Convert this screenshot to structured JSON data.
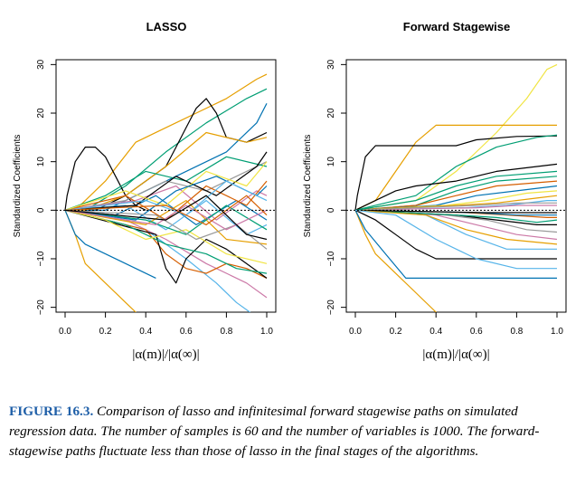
{
  "chart_data": [
    {
      "type": "line",
      "title": "LASSO",
      "xlabel": "|α(m)|/|α(∞)|",
      "ylabel": "Standardized Coefficients",
      "xlim": [
        0.0,
        1.0
      ],
      "ylim": [
        -21,
        31
      ],
      "xticks": [
        "0.0",
        "0.2",
        "0.4",
        "0.6",
        "0.8",
        "1.0"
      ],
      "yticks": [
        "30",
        "20",
        "10",
        "0",
        "−10",
        "−20"
      ],
      "grid": false,
      "legend": "none",
      "zero_line": true,
      "series": [
        {
          "color": "#e69f00",
          "x": [
            0,
            0.05,
            0.2,
            0.35,
            0.5,
            0.65,
            0.8,
            0.95,
            1.0
          ],
          "y": [
            0,
            0,
            6,
            14,
            17,
            20,
            23,
            27,
            28
          ]
        },
        {
          "color": "#009e73",
          "x": [
            0,
            0.1,
            0.3,
            0.5,
            0.7,
            0.9,
            1.0
          ],
          "y": [
            0,
            0,
            5,
            12,
            18,
            23,
            25
          ]
        },
        {
          "color": "#000000",
          "x": [
            0,
            0.01,
            0.05,
            0.1,
            0.15,
            0.2,
            0.25,
            0.3,
            0.35,
            0.4
          ],
          "y": [
            0,
            3,
            10,
            13,
            13,
            11,
            7,
            3,
            1,
            0
          ]
        },
        {
          "color": "#000000",
          "x": [
            0,
            0.15,
            0.3,
            0.4,
            0.5,
            0.55,
            0.6,
            0.65,
            0.7,
            0.75,
            0.8,
            0.9,
            1.0
          ],
          "y": [
            0,
            0,
            3,
            6,
            9,
            13,
            17,
            21,
            23,
            20,
            15,
            14,
            16
          ]
        },
        {
          "color": "#0072b2",
          "x": [
            0,
            0.2,
            0.4,
            0.6,
            0.8,
            0.95,
            1.0
          ],
          "y": [
            0,
            0,
            4,
            8,
            12,
            18,
            22
          ]
        },
        {
          "color": "#e69f00",
          "x": [
            0,
            0.05,
            0.1,
            0.2,
            0.3,
            0.35,
            0.4,
            0.5
          ],
          "y": [
            0,
            -5,
            -11,
            -15,
            -19,
            -21,
            -24,
            -27
          ]
        },
        {
          "color": "#56b4e9",
          "x": [
            0,
            0.4,
            0.6,
            0.75,
            0.85,
            0.95,
            1.0
          ],
          "y": [
            0,
            -4,
            -10,
            -15,
            -19,
            -22,
            -24
          ]
        },
        {
          "color": "#cc79a7",
          "x": [
            0,
            0.3,
            0.5,
            0.7,
            0.9,
            1.0
          ],
          "y": [
            0,
            -2,
            -6,
            -11,
            -15,
            -18
          ]
        },
        {
          "color": "#d55e00",
          "x": [
            0,
            0.4,
            0.5,
            0.6,
            0.7,
            0.8,
            0.9,
            1.0
          ],
          "y": [
            0,
            -4,
            -9,
            -12,
            -13,
            -11,
            -12,
            -14
          ]
        },
        {
          "color": "#000000",
          "x": [
            0,
            0.45,
            0.5,
            0.55,
            0.6,
            0.7,
            0.8,
            1.0
          ],
          "y": [
            0,
            -5,
            -12,
            -15,
            -10,
            -6,
            -8,
            -14
          ]
        },
        {
          "color": "#009e73",
          "x": [
            0,
            0.3,
            0.5,
            0.7,
            0.85,
            1.0
          ],
          "y": [
            0,
            -3,
            -7,
            -9,
            -12,
            -13
          ]
        },
        {
          "color": "#0072b2",
          "x": [
            0,
            0.05,
            0.1,
            0.2,
            0.35,
            0.45
          ],
          "y": [
            0,
            -5,
            -7,
            -9,
            -12,
            -14
          ]
        },
        {
          "color": "#e69f00",
          "x": [
            0,
            0.1,
            0.3,
            0.5,
            0.7,
            0.9,
            1.0
          ],
          "y": [
            0,
            0,
            3,
            9,
            16,
            14,
            15
          ]
        },
        {
          "color": "#f0e442",
          "x": [
            0,
            0.2,
            0.4,
            0.6,
            0.8,
            1.0
          ],
          "y": [
            0,
            -2,
            -6,
            -4,
            -9,
            -11
          ]
        },
        {
          "color": "#999999",
          "x": [
            0,
            0.3,
            0.5,
            0.7,
            0.9,
            1.0
          ],
          "y": [
            0,
            2,
            6,
            4,
            8,
            10
          ]
        },
        {
          "color": "#009e73",
          "x": [
            0,
            0.2,
            0.4,
            0.6,
            0.8,
            1.0
          ],
          "y": [
            0,
            3,
            8,
            6,
            11,
            9
          ]
        },
        {
          "color": "#0072b2",
          "x": [
            0,
            0.25,
            0.45,
            0.65,
            0.85,
            1.0
          ],
          "y": [
            0,
            -1,
            3,
            -3,
            2,
            -2
          ]
        },
        {
          "color": "#56b4e9",
          "x": [
            0,
            0.3,
            0.5,
            0.7,
            0.9,
            1.0
          ],
          "y": [
            0,
            1,
            -4,
            2,
            -5,
            -3
          ]
        },
        {
          "color": "#cc79a7",
          "x": [
            0,
            0.35,
            0.55,
            0.75,
            0.95,
            1.0
          ],
          "y": [
            0,
            2,
            5,
            -2,
            4,
            3
          ]
        },
        {
          "color": "#d55e00",
          "x": [
            0,
            0.3,
            0.5,
            0.7,
            0.9,
            1.0
          ],
          "y": [
            0,
            3,
            -2,
            5,
            1,
            6
          ]
        },
        {
          "color": "#e69f00",
          "x": [
            0,
            0.4,
            0.6,
            0.8,
            1.0
          ],
          "y": [
            0,
            -3,
            2,
            -6,
            -7
          ]
        },
        {
          "color": "#000000",
          "x": [
            0,
            0.35,
            0.55,
            0.75,
            0.95,
            1.0
          ],
          "y": [
            0,
            1,
            7,
            3,
            9,
            12
          ]
        },
        {
          "color": "#009e73",
          "x": [
            0,
            0.4,
            0.6,
            0.8,
            1.0
          ],
          "y": [
            0,
            -2,
            -5,
            1,
            -4
          ]
        },
        {
          "color": "#f0e442",
          "x": [
            0,
            0.3,
            0.5,
            0.7,
            0.9,
            1.0
          ],
          "y": [
            0,
            4,
            1,
            8,
            5,
            10
          ]
        },
        {
          "color": "#0072b2",
          "x": [
            0,
            0.35,
            0.55,
            0.75,
            0.95,
            1.0
          ],
          "y": [
            0,
            -2,
            4,
            7,
            3,
            5
          ]
        },
        {
          "color": "#999999",
          "x": [
            0,
            0.45,
            0.65,
            0.85,
            1.0
          ],
          "y": [
            0,
            -1,
            -6,
            -3,
            -8
          ]
        },
        {
          "color": "#56b4e9",
          "x": [
            0,
            0.4,
            0.6,
            0.8,
            1.0
          ],
          "y": [
            0,
            2,
            -1,
            6,
            2
          ]
        },
        {
          "color": "#cc79a7",
          "x": [
            0,
            0.45,
            0.6,
            0.8,
            1.0
          ],
          "y": [
            0,
            -3,
            1,
            -4,
            0
          ]
        },
        {
          "color": "#d55e00",
          "x": [
            0,
            0.5,
            0.7,
            0.9,
            1.0
          ],
          "y": [
            0,
            1,
            -3,
            3,
            -1
          ]
        },
        {
          "color": "#000000",
          "x": [
            0,
            0.5,
            0.7,
            0.9,
            1.0
          ],
          "y": [
            0,
            -2,
            3,
            -5,
            -6
          ]
        }
      ]
    },
    {
      "type": "line",
      "title": "Forward Stagewise",
      "xlabel": "|α(m)|/|α(∞)|",
      "ylabel": "Standardized Coefficients",
      "xlim": [
        0.0,
        1.0
      ],
      "ylim": [
        -21,
        31
      ],
      "xticks": [
        "0.0",
        "0.2",
        "0.4",
        "0.6",
        "0.8",
        "1.0"
      ],
      "yticks": [
        "30",
        "20",
        "10",
        "0",
        "−10",
        "−20"
      ],
      "grid": false,
      "legend": "none",
      "zero_line": true,
      "series": [
        {
          "color": "#f0e442",
          "x": [
            0,
            0.3,
            0.5,
            0.7,
            0.85,
            0.95,
            1.0
          ],
          "y": [
            0,
            2,
            8,
            16,
            23,
            29,
            30
          ]
        },
        {
          "color": "#e69f00",
          "x": [
            0,
            0.1,
            0.2,
            0.3,
            0.4,
            1.0
          ],
          "y": [
            0,
            2,
            8,
            14,
            17.5,
            17.5
          ]
        },
        {
          "color": "#000000",
          "x": [
            0,
            0.01,
            0.05,
            0.1,
            0.5,
            0.6,
            0.8,
            1.0
          ],
          "y": [
            0,
            3,
            11,
            13.3,
            13.3,
            14.5,
            15.2,
            15.3
          ]
        },
        {
          "color": "#009e73",
          "x": [
            0,
            0.3,
            0.5,
            0.7,
            0.9,
            1.0
          ],
          "y": [
            0,
            3,
            9,
            13,
            15,
            15.5
          ]
        },
        {
          "color": "#e69f00",
          "x": [
            0,
            0.05,
            0.1,
            0.2,
            0.3,
            0.4,
            0.45
          ],
          "y": [
            0,
            -5,
            -9,
            -13,
            -17,
            -21,
            -24
          ]
        },
        {
          "color": "#0072b2",
          "x": [
            0,
            0.05,
            0.15,
            0.25,
            1.0
          ],
          "y": [
            0,
            -4,
            -9,
            -14,
            -14
          ]
        },
        {
          "color": "#000000",
          "x": [
            0,
            0.1,
            0.2,
            0.3,
            0.4,
            1.0
          ],
          "y": [
            0,
            -2,
            -5,
            -8,
            -10,
            -10
          ]
        },
        {
          "color": "#000000",
          "x": [
            0,
            0.1,
            0.2,
            0.3,
            0.5,
            0.7,
            1.0
          ],
          "y": [
            0,
            2,
            4,
            5,
            6,
            8,
            9.5
          ]
        },
        {
          "color": "#009e73",
          "x": [
            0,
            0.3,
            0.5,
            0.7,
            1.0
          ],
          "y": [
            0,
            1,
            4,
            6,
            7
          ]
        },
        {
          "color": "#56b4e9",
          "x": [
            0,
            0.35,
            0.55,
            0.75,
            1.0
          ],
          "y": [
            0,
            -1,
            -5,
            -8,
            -8
          ]
        },
        {
          "color": "#d55e00",
          "x": [
            0,
            0.3,
            0.5,
            0.7,
            1.0
          ],
          "y": [
            0,
            1,
            3,
            5,
            6
          ]
        },
        {
          "color": "#cc79a7",
          "x": [
            0,
            0.4,
            0.6,
            0.8,
            1.0
          ],
          "y": [
            0,
            -1,
            -3,
            -5,
            -6
          ]
        },
        {
          "color": "#0072b2",
          "x": [
            0,
            0.4,
            0.6,
            0.8,
            1.0
          ],
          "y": [
            0,
            1,
            3,
            4,
            5
          ]
        },
        {
          "color": "#999999",
          "x": [
            0,
            0.45,
            0.65,
            0.85,
            1.0
          ],
          "y": [
            0,
            -1,
            -2,
            -4,
            -4.5
          ]
        },
        {
          "color": "#f0e442",
          "x": [
            0,
            0.45,
            0.65,
            0.85,
            1.0
          ],
          "y": [
            0,
            1,
            2,
            3.5,
            4
          ]
        },
        {
          "color": "#000000",
          "x": [
            0,
            0.5,
            0.7,
            0.9,
            1.0
          ],
          "y": [
            0,
            -1,
            -2,
            -3,
            -3
          ]
        },
        {
          "color": "#009e73",
          "x": [
            0,
            0.5,
            0.7,
            0.9,
            1.0
          ],
          "y": [
            0,
            -1,
            -1.5,
            -2.5,
            -2
          ]
        },
        {
          "color": "#e69f00",
          "x": [
            0,
            0.5,
            0.7,
            0.9,
            1.0
          ],
          "y": [
            0,
            1,
            1.5,
            2.5,
            3
          ]
        },
        {
          "color": "#56b4e9",
          "x": [
            0,
            0.55,
            0.75,
            0.95,
            1.0
          ],
          "y": [
            0,
            0.5,
            1,
            2,
            2
          ]
        },
        {
          "color": "#d55e00",
          "x": [
            0,
            0.55,
            0.75,
            0.95,
            1.0
          ],
          "y": [
            0,
            -0.5,
            -1,
            -1.5,
            -1.5
          ]
        },
        {
          "color": "#cc79a7",
          "x": [
            0,
            0.6,
            0.8,
            1.0
          ],
          "y": [
            0,
            0.5,
            1,
            1
          ]
        },
        {
          "color": "#0072b2",
          "x": [
            0,
            0.6,
            0.8,
            1.0
          ],
          "y": [
            0,
            -0.5,
            -1,
            -1
          ]
        },
        {
          "color": "#999999",
          "x": [
            0,
            0.6,
            0.8,
            1.0
          ],
          "y": [
            0,
            1,
            1.5,
            1.5
          ]
        },
        {
          "color": "#000000",
          "x": [
            0,
            0.65,
            0.85,
            1.0
          ],
          "y": [
            0,
            -0.5,
            -0.5,
            -0.5
          ]
        },
        {
          "color": "#e69f00",
          "x": [
            0,
            0.35,
            0.55,
            0.75,
            1.0
          ],
          "y": [
            0,
            -1,
            -4,
            -6,
            -7
          ]
        },
        {
          "color": "#009e73",
          "x": [
            0,
            0.3,
            0.5,
            0.7,
            1.0
          ],
          "y": [
            0,
            2,
            5,
            7,
            8
          ]
        },
        {
          "color": "#56b4e9",
          "x": [
            0,
            0.2,
            0.4,
            0.6,
            0.8,
            1.0
          ],
          "y": [
            0,
            -1,
            -6,
            -10,
            -12,
            -12
          ]
        }
      ]
    }
  ],
  "caption": {
    "label": "FIGURE 16.3.",
    "text": "Comparison of lasso and infinitesimal forward stagewise paths on simulated regression data. The number of samples is 60 and the number of variables is 1000. The forward-stagewise paths fluctuate less than those of lasso in the final stages of the algorithms."
  }
}
